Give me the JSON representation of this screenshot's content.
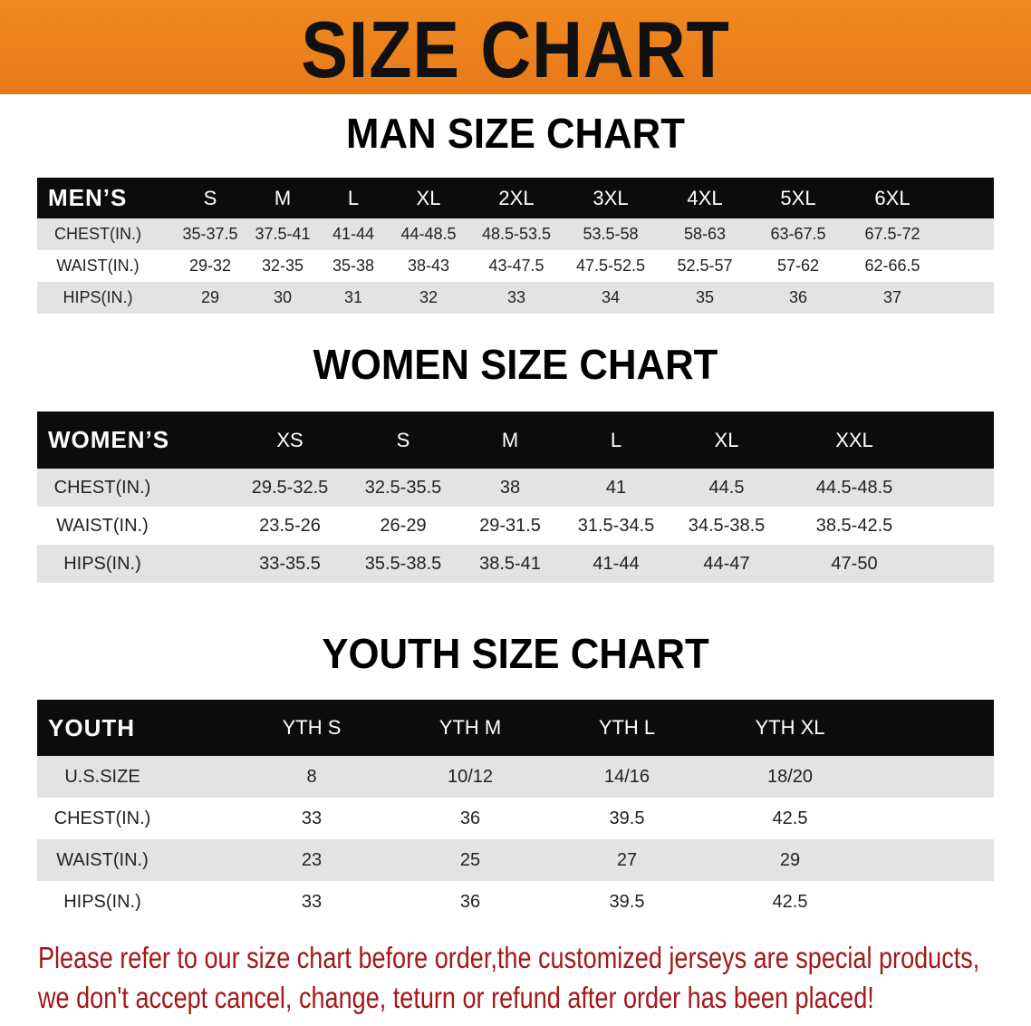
{
  "banner": {
    "title": "SIZE CHART",
    "color": "#ec801c"
  },
  "men": {
    "title": "MAN SIZE CHART",
    "header": [
      "MEN’S",
      "S",
      "M",
      "L",
      "XL",
      "2XL",
      "3XL",
      "4XL",
      "5XL",
      "6XL"
    ],
    "rows": [
      [
        "CHEST(IN.)",
        "35-37.5",
        "37.5-41",
        "41-44",
        "44-48.5",
        "48.5-53.5",
        "53.5-58",
        "58-63",
        "63-67.5",
        "67.5-72"
      ],
      [
        "WAIST(IN.)",
        "29-32",
        "32-35",
        "35-38",
        "38-43",
        "43-47.5",
        "47.5-52.5",
        "52.5-57",
        "57-62",
        "62-66.5"
      ],
      [
        "HIPS(IN.)",
        "29",
        "30",
        "31",
        "32",
        "33",
        "34",
        "35",
        "36",
        "37"
      ]
    ]
  },
  "women": {
    "title": "WOMEN SIZE CHART",
    "header": [
      "WOMEN’S",
      "XS",
      "S",
      "M",
      "L",
      "XL",
      "XXL"
    ],
    "rows": [
      [
        "CHEST(IN.)",
        "29.5-32.5",
        "32.5-35.5",
        "38",
        "41",
        "44.5",
        "44.5-48.5"
      ],
      [
        "WAIST(IN.)",
        "23.5-26",
        "26-29",
        "29-31.5",
        "31.5-34.5",
        "34.5-38.5",
        "38.5-42.5"
      ],
      [
        "HIPS(IN.)",
        "33-35.5",
        "35.5-38.5",
        "38.5-41",
        "41-44",
        "44-47",
        "47-50"
      ]
    ]
  },
  "youth": {
    "title": "YOUTH SIZE CHART",
    "header": [
      "YOUTH",
      "YTH S",
      "YTH M",
      "YTH L",
      "YTH XL"
    ],
    "rows": [
      [
        "U.S.SIZE",
        "8",
        "10/12",
        "14/16",
        "18/20"
      ],
      [
        "CHEST(IN.)",
        "33",
        "36",
        "39.5",
        "42.5"
      ],
      [
        "WAIST(IN.)",
        "23",
        "25",
        "27",
        "29"
      ],
      [
        "HIPS(IN.)",
        "33",
        "36",
        "39.5",
        "42.5"
      ]
    ]
  },
  "note": {
    "line1": "Please refer to our size chart before order,the customized jerseys are special products,",
    "line2": "we don't accept cancel, change, teturn or refund after order has been placed!",
    "color": "#a31818"
  }
}
